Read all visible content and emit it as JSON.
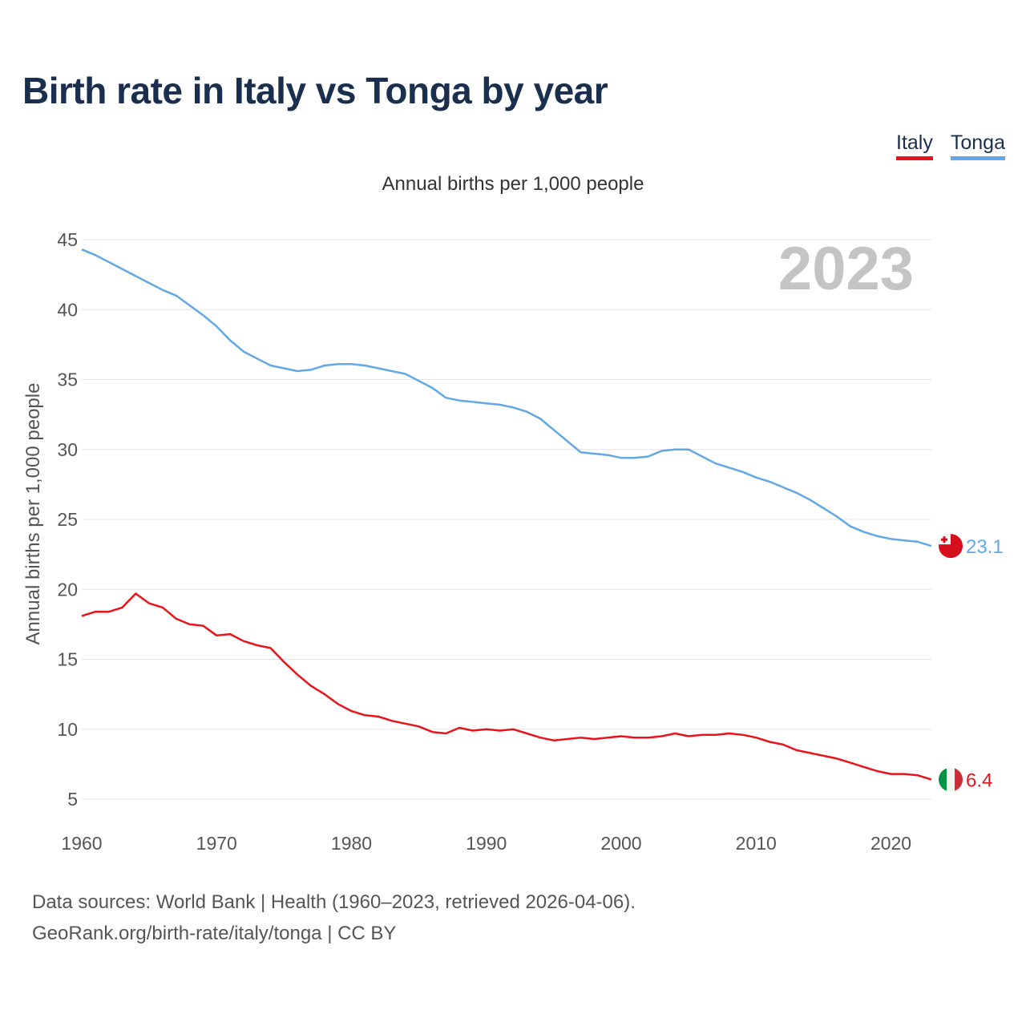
{
  "title": "Birth rate in Italy vs Tonga by year",
  "subtitle": "Annual births per 1,000 people",
  "legend": [
    {
      "name": "Italy",
      "color": "#e8141b"
    },
    {
      "name": "Tonga",
      "color": "#62a8e5"
    }
  ],
  "year_label": "2023",
  "footer": {
    "line1": "Data sources: World Bank | Health (1960–2023, retrieved 2026-04-06).",
    "line2": "GeoRank.org/birth-rate/italy/tonga | CC BY"
  },
  "chart_data": {
    "type": "line",
    "title": "Birth rate in Italy vs Tonga by year",
    "subtitle": "Annual births per 1,000 people",
    "xlabel": "",
    "ylabel": "Annual births per 1,000 people",
    "xlim": [
      1960,
      2023
    ],
    "ylim": [
      5,
      45
    ],
    "xticks": [
      1960,
      1970,
      1980,
      1990,
      2000,
      2010,
      2020
    ],
    "yticks": [
      5,
      10,
      15,
      20,
      25,
      30,
      35,
      40,
      45
    ],
    "grid": true,
    "legend_position": "top-right",
    "x": [
      1960,
      1961,
      1962,
      1963,
      1964,
      1965,
      1966,
      1967,
      1968,
      1969,
      1970,
      1971,
      1972,
      1973,
      1974,
      1975,
      1976,
      1977,
      1978,
      1979,
      1980,
      1981,
      1982,
      1983,
      1984,
      1985,
      1986,
      1987,
      1988,
      1989,
      1990,
      1991,
      1992,
      1993,
      1994,
      1995,
      1996,
      1997,
      1998,
      1999,
      2000,
      2001,
      2002,
      2003,
      2004,
      2005,
      2006,
      2007,
      2008,
      2009,
      2010,
      2011,
      2012,
      2013,
      2014,
      2015,
      2016,
      2017,
      2018,
      2019,
      2020,
      2021,
      2022,
      2023
    ],
    "series": [
      {
        "name": "Italy",
        "color": "#e8141b",
        "end_label": "6.4",
        "values": [
          18.1,
          18.4,
          18.4,
          18.7,
          19.7,
          19.0,
          18.7,
          17.9,
          17.5,
          17.4,
          16.7,
          16.8,
          16.3,
          16.0,
          15.8,
          14.8,
          13.9,
          13.1,
          12.5,
          11.8,
          11.3,
          11.0,
          10.9,
          10.6,
          10.4,
          10.2,
          9.8,
          9.7,
          10.1,
          9.9,
          10.0,
          9.9,
          10.0,
          9.7,
          9.4,
          9.2,
          9.3,
          9.4,
          9.3,
          9.4,
          9.5,
          9.4,
          9.4,
          9.5,
          9.7,
          9.5,
          9.6,
          9.6,
          9.7,
          9.6,
          9.4,
          9.1,
          8.9,
          8.5,
          8.3,
          8.1,
          7.9,
          7.6,
          7.3,
          7.0,
          6.8,
          6.8,
          6.7,
          6.4
        ]
      },
      {
        "name": "Tonga",
        "color": "#62a8e5",
        "end_label": "23.1",
        "values": [
          44.3,
          43.9,
          43.4,
          42.9,
          42.4,
          41.9,
          41.4,
          41.0,
          40.3,
          39.6,
          38.8,
          37.8,
          37.0,
          36.5,
          36.0,
          35.8,
          35.6,
          35.7,
          36.0,
          36.1,
          36.1,
          36.0,
          35.8,
          35.6,
          35.4,
          34.9,
          34.4,
          33.7,
          33.5,
          33.4,
          33.3,
          33.2,
          33.0,
          32.7,
          32.2,
          31.4,
          30.6,
          29.8,
          29.7,
          29.6,
          29.4,
          29.4,
          29.5,
          29.9,
          30.0,
          30.0,
          29.5,
          29.0,
          28.7,
          28.4,
          28.0,
          27.7,
          27.3,
          26.9,
          26.4,
          25.8,
          25.2,
          24.5,
          24.1,
          23.8,
          23.6,
          23.5,
          23.4,
          23.1
        ]
      }
    ]
  }
}
